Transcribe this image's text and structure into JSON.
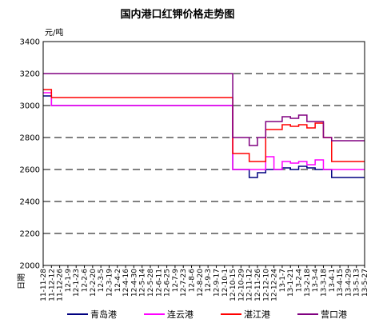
{
  "chart_data": {
    "type": "line",
    "title": "国内港口红钾价格走势图",
    "ylabel": "元/吨",
    "xlabel": "日期",
    "ylim": [
      2000,
      3400
    ],
    "yticks": [
      2000,
      2200,
      2400,
      2600,
      2800,
      3000,
      3200,
      3400
    ],
    "grid": "horizontal dashed",
    "legend_position": "bottom",
    "categories": [
      "11-11-28",
      "11-12-12",
      "11-12-26",
      "12-1-9",
      "12-1-23",
      "12-2-6",
      "12-2-20",
      "12-3-5",
      "12-3-19",
      "12-4-2",
      "12-4-16",
      "12-4-30",
      "12-5-14",
      "12-5-28",
      "12-6-11",
      "12-6-25",
      "12-7-9",
      "12-7-23",
      "12-8-6",
      "12-8-20",
      "12-9-3",
      "12-9-17",
      "12-10-1",
      "12-10-15",
      "12-10-29",
      "12-11-12",
      "12-11-26",
      "12-12-10",
      "12-12-24",
      "13-1-7",
      "13-1-21",
      "13-2-4",
      "13-2-18",
      "13-3-4",
      "13-3-18",
      "13-4-1",
      "13-4-15",
      "13-4-29",
      "13-5-13",
      "13-5-27"
    ],
    "series": [
      {
        "name": "青岛港",
        "color": "#000080",
        "values": [
          3060,
          3000,
          3000,
          3000,
          3000,
          3000,
          3000,
          3000,
          3000,
          3000,
          3000,
          3000,
          3000,
          3000,
          3000,
          3000,
          3000,
          3000,
          3000,
          3000,
          3000,
          3000,
          3000,
          2600,
          2600,
          2550,
          2580,
          2600,
          2600,
          2610,
          2600,
          2620,
          2610,
          2600,
          2600,
          2550,
          2550,
          2550,
          2550,
          2550
        ]
      },
      {
        "name": "连云港",
        "color": "#FF00FF",
        "values": [
          3080,
          3000,
          3000,
          3000,
          3000,
          3000,
          3000,
          3000,
          3000,
          3000,
          3000,
          3000,
          3000,
          3000,
          3000,
          3000,
          3000,
          3000,
          3000,
          3000,
          3000,
          3000,
          3000,
          2600,
          2600,
          2600,
          2600,
          2680,
          2600,
          2650,
          2640,
          2650,
          2630,
          2660,
          2600,
          2600,
          2600,
          2600,
          2600,
          2600
        ]
      },
      {
        "name": "湛江港",
        "color": "#FF0000",
        "values": [
          3100,
          3050,
          3050,
          3050,
          3050,
          3050,
          3050,
          3050,
          3050,
          3050,
          3050,
          3050,
          3050,
          3050,
          3050,
          3050,
          3050,
          3050,
          3050,
          3050,
          3050,
          3050,
          3050,
          2700,
          2700,
          2650,
          2650,
          2850,
          2850,
          2880,
          2870,
          2880,
          2860,
          2890,
          2800,
          2650,
          2650,
          2650,
          2650,
          2650
        ]
      },
      {
        "name": "营口港",
        "color": "#800080",
        "values": [
          3200,
          3200,
          3200,
          3200,
          3200,
          3200,
          3200,
          3200,
          3200,
          3200,
          3200,
          3200,
          3200,
          3200,
          3200,
          3200,
          3200,
          3200,
          3200,
          3200,
          3200,
          3200,
          3200,
          2800,
          2800,
          2750,
          2800,
          2900,
          2900,
          2930,
          2920,
          2940,
          2900,
          2900,
          2800,
          2780,
          2780,
          2780,
          2780,
          2780
        ]
      }
    ]
  }
}
